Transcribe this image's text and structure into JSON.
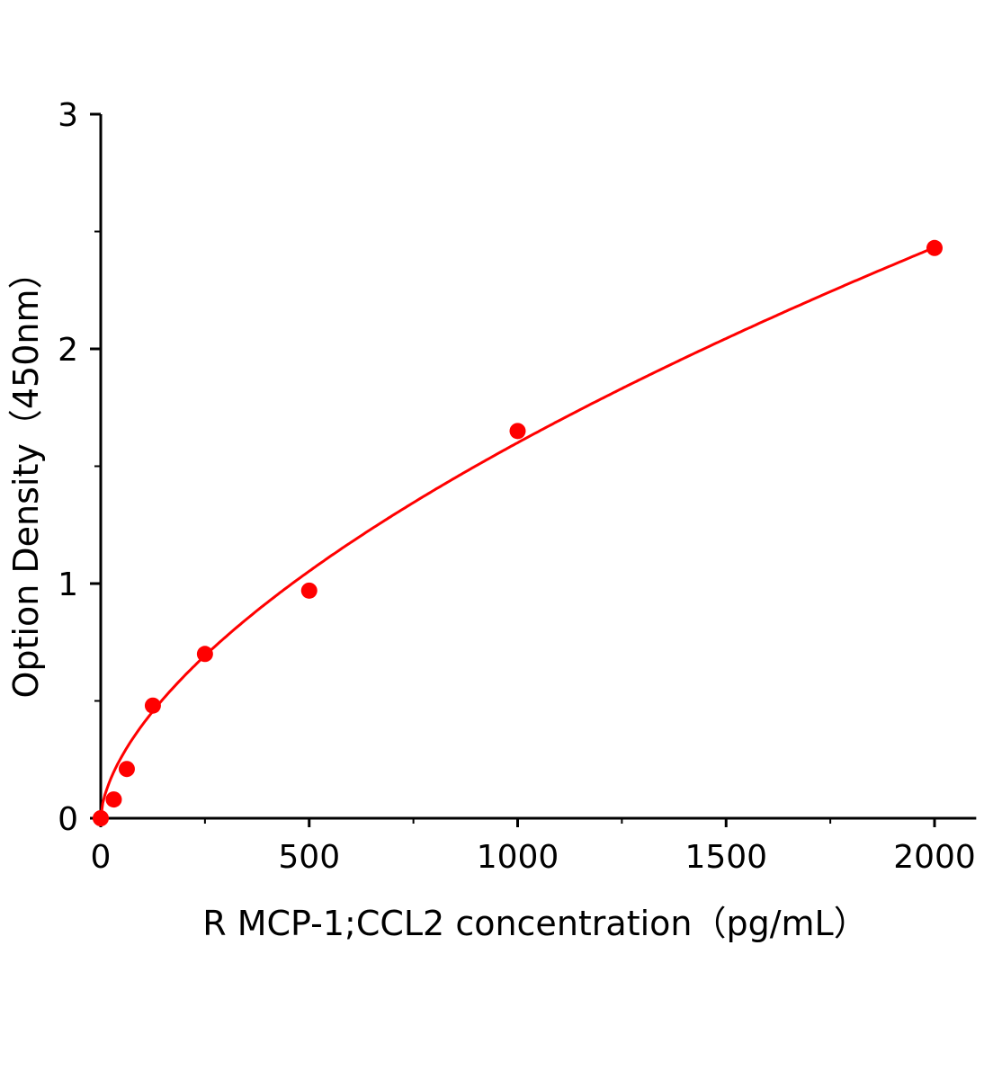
{
  "chart_data": {
    "type": "scatter",
    "title": "",
    "xlabel": "R MCP-1;CCL2 concentration（pg/mL）",
    "ylabel": "Option Density（450nm）",
    "xlim": [
      0,
      2100
    ],
    "ylim": [
      0,
      3
    ],
    "xticks": [
      "0",
      "500",
      "1000",
      "1500",
      "2000"
    ],
    "yticks": [
      "0",
      "1",
      "2",
      "3"
    ],
    "grid": false,
    "color": "#ff0000",
    "points": {
      "x": [
        0,
        31.25,
        62.5,
        125,
        250,
        500,
        1000,
        2000
      ],
      "y": [
        0.0,
        0.08,
        0.21,
        0.48,
        0.7,
        0.97,
        1.65,
        2.43
      ]
    },
    "fit_curve": {
      "x": [
        0,
        10,
        25,
        50,
        100,
        150,
        200,
        300,
        400,
        500,
        700,
        900,
        1100,
        1300,
        1500,
        1700,
        2000
      ],
      "y": [
        0,
        0.07,
        0.18,
        0.26,
        0.4,
        0.5,
        0.6,
        0.76,
        0.91,
        1.04,
        1.27,
        1.48,
        1.68,
        1.86,
        2.02,
        2.17,
        2.43
      ]
    }
  }
}
